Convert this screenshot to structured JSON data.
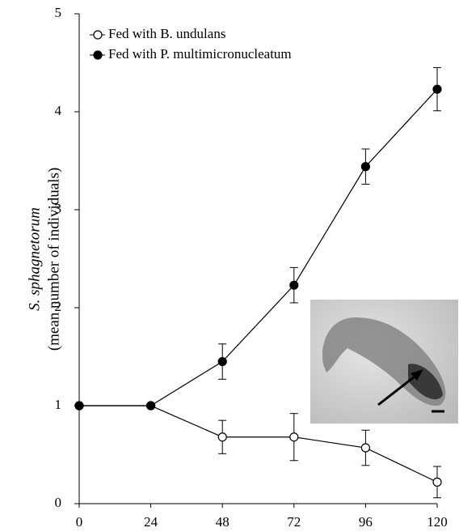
{
  "chart_data": {
    "type": "line",
    "y_label": [
      "S. sphagnetorum",
      "(mean number of individuals)"
    ],
    "x": [
      0,
      24,
      48,
      72,
      96,
      120
    ],
    "xlim": [
      0,
      120
    ],
    "xticks": [
      0,
      24,
      48,
      72,
      96,
      120
    ],
    "ylim": [
      0,
      5
    ],
    "yticks": [
      0,
      1,
      2,
      3,
      4,
      5
    ],
    "series": [
      {
        "name": "Fed with B. undulans",
        "color": "#000000",
        "marker_fill": "#ffffff",
        "values": [
          1.0,
          1.0,
          0.68,
          0.68,
          0.57,
          0.22
        ],
        "errors": [
          null,
          null,
          0.17,
          0.24,
          0.18,
          0.16
        ]
      },
      {
        "name": "Fed with P. multimicronucleatum",
        "color": "#000000",
        "marker_fill": "#000000",
        "values": [
          1.0,
          1.0,
          1.45,
          2.23,
          3.44,
          4.23
        ],
        "errors": [
          null,
          null,
          0.18,
          0.18,
          0.18,
          0.22
        ]
      }
    ]
  }
}
